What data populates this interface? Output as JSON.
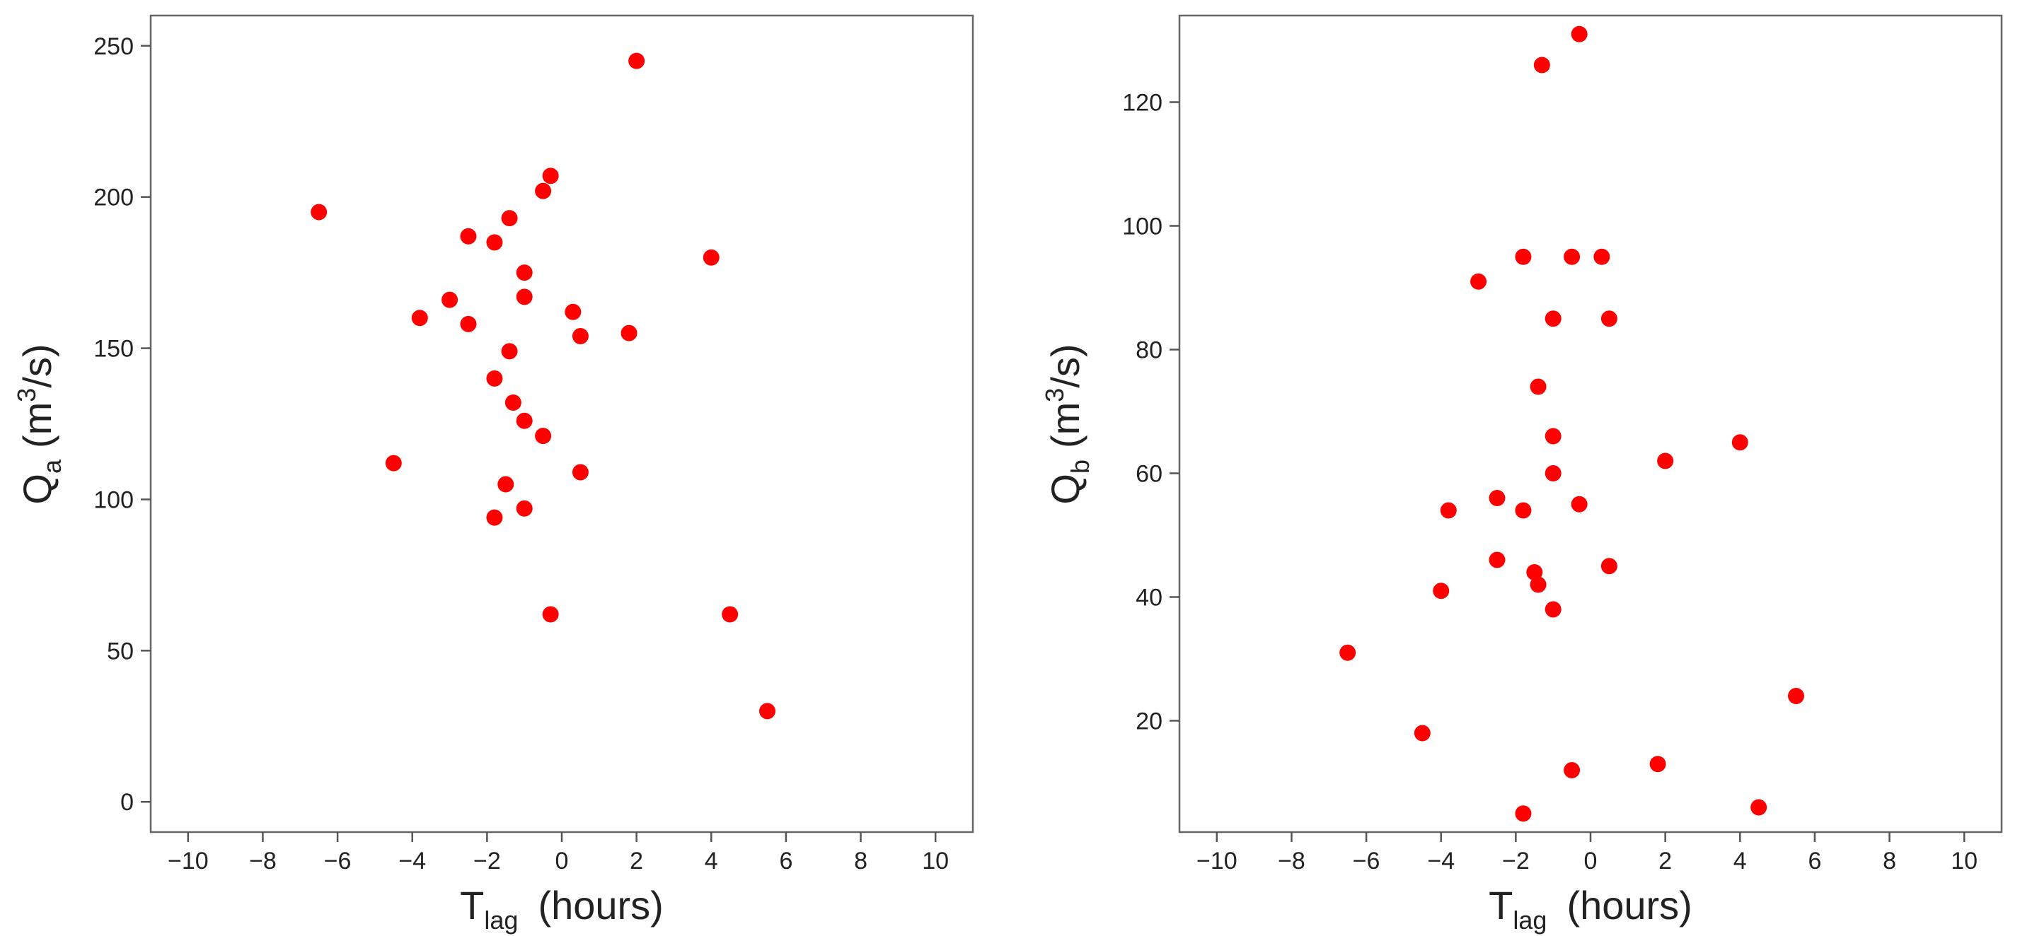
{
  "chart_data": [
    {
      "type": "scatter",
      "xlabel_main": "T",
      "xlabel_sub": "lag",
      "xlabel_unit": "(hours)",
      "ylabel_main": "Q",
      "ylabel_sub": "a",
      "ylabel_unit_pre": "(m",
      "ylabel_unit_sup": "3",
      "ylabel_unit_post": "/s)",
      "xlim": [
        -11,
        11
      ],
      "ylim": [
        -10,
        260
      ],
      "xticks": [
        -10,
        -8,
        -6,
        -4,
        -2,
        0,
        2,
        4,
        6,
        8,
        10
      ],
      "yticks": [
        0,
        50,
        100,
        150,
        200,
        250
      ],
      "marker_color": "#ff0000",
      "grid": false,
      "points": [
        {
          "x": -6.5,
          "y": 195
        },
        {
          "x": -4.5,
          "y": 112
        },
        {
          "x": -3.8,
          "y": 160
        },
        {
          "x": -3.0,
          "y": 166
        },
        {
          "x": -2.5,
          "y": 187
        },
        {
          "x": -2.5,
          "y": 158
        },
        {
          "x": -1.8,
          "y": 185
        },
        {
          "x": -1.8,
          "y": 140
        },
        {
          "x": -1.8,
          "y": 94
        },
        {
          "x": -1.5,
          "y": 105
        },
        {
          "x": -1.4,
          "y": 193
        },
        {
          "x": -1.4,
          "y": 149
        },
        {
          "x": -1.3,
          "y": 132
        },
        {
          "x": -1.0,
          "y": 175
        },
        {
          "x": -1.0,
          "y": 167
        },
        {
          "x": -1.0,
          "y": 126
        },
        {
          "x": -1.0,
          "y": 97
        },
        {
          "x": -0.5,
          "y": 202
        },
        {
          "x": -0.5,
          "y": 121
        },
        {
          "x": -0.3,
          "y": 207
        },
        {
          "x": -0.3,
          "y": 62
        },
        {
          "x": 0.3,
          "y": 162
        },
        {
          "x": 0.5,
          "y": 154
        },
        {
          "x": 0.5,
          "y": 109
        },
        {
          "x": 1.8,
          "y": 155
        },
        {
          "x": 2.0,
          "y": 245
        },
        {
          "x": 4.0,
          "y": 180
        },
        {
          "x": 4.5,
          "y": 62
        },
        {
          "x": 5.5,
          "y": 30
        }
      ]
    },
    {
      "type": "scatter",
      "xlabel_main": "T",
      "xlabel_sub": "lag",
      "xlabel_unit": "(hours)",
      "ylabel_main": "Q",
      "ylabel_sub": "b",
      "ylabel_unit_pre": "(m",
      "ylabel_unit_sup": "3",
      "ylabel_unit_post": "/s)",
      "xlim": [
        -11,
        11
      ],
      "ylim": [
        2,
        134
      ],
      "xticks": [
        -10,
        -8,
        -6,
        -4,
        -2,
        0,
        2,
        4,
        6,
        8,
        10
      ],
      "yticks": [
        20,
        40,
        60,
        80,
        100,
        120
      ],
      "marker_color": "#ff0000",
      "grid": false,
      "points": [
        {
          "x": -6.5,
          "y": 31
        },
        {
          "x": -4.5,
          "y": 18
        },
        {
          "x": -4.0,
          "y": 41
        },
        {
          "x": -3.8,
          "y": 54
        },
        {
          "x": -3.0,
          "y": 91
        },
        {
          "x": -2.5,
          "y": 56
        },
        {
          "x": -2.5,
          "y": 46
        },
        {
          "x": -1.8,
          "y": 95
        },
        {
          "x": -1.8,
          "y": 54
        },
        {
          "x": -1.8,
          "y": 5
        },
        {
          "x": -1.5,
          "y": 44
        },
        {
          "x": -1.4,
          "y": 74
        },
        {
          "x": -1.4,
          "y": 42
        },
        {
          "x": -1.3,
          "y": 126
        },
        {
          "x": -1.0,
          "y": 85
        },
        {
          "x": -1.0,
          "y": 66
        },
        {
          "x": -1.0,
          "y": 60
        },
        {
          "x": -1.0,
          "y": 38
        },
        {
          "x": -0.5,
          "y": 95
        },
        {
          "x": -0.5,
          "y": 12
        },
        {
          "x": -0.3,
          "y": 55
        },
        {
          "x": -0.3,
          "y": 131
        },
        {
          "x": 0.3,
          "y": 95
        },
        {
          "x": 0.5,
          "y": 85
        },
        {
          "x": 0.5,
          "y": 45
        },
        {
          "x": 1.8,
          "y": 13
        },
        {
          "x": 2.0,
          "y": 62
        },
        {
          "x": 4.0,
          "y": 65
        },
        {
          "x": 4.5,
          "y": 6
        },
        {
          "x": 5.5,
          "y": 24
        }
      ]
    }
  ]
}
